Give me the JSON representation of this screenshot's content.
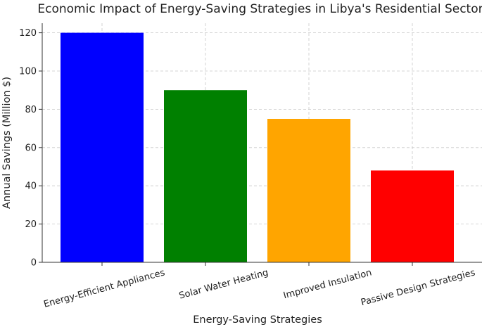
{
  "chart_data": {
    "type": "bar",
    "title": "Economic Impact of Energy-Saving Strategies in Libya's Residential Sector",
    "xlabel": "Energy-Saving Strategies",
    "ylabel": "Annual Savings (Million $)",
    "categories": [
      "Energy-Efficient Appliances",
      "Solar Water Heating",
      "Improved Insulation",
      "Passive Design Strategies"
    ],
    "values": [
      120,
      90,
      75,
      48
    ],
    "colors": [
      "#0000ff",
      "#008000",
      "#ffa500",
      "#ff0000"
    ],
    "ylim": [
      0,
      125
    ],
    "yticks": [
      "0",
      "20",
      "40",
      "60",
      "80",
      "100",
      "120"
    ],
    "grid": true
  }
}
